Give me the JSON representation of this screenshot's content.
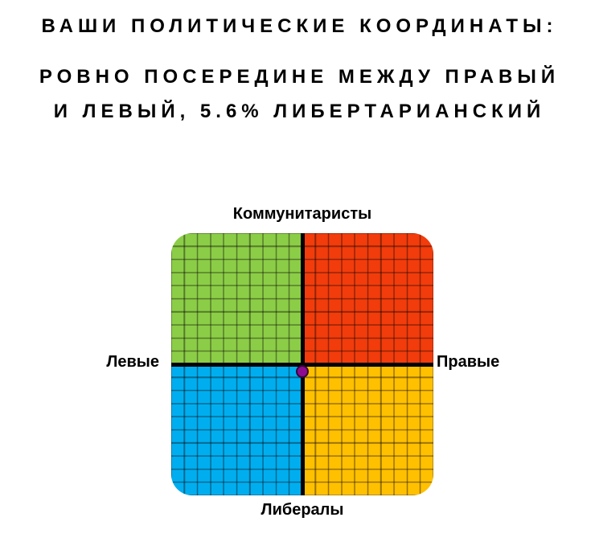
{
  "header": {
    "title": "ВАШИ ПОЛИТИЧЕСКИЕ КООРДИНАТЫ:",
    "subtitle_line1": "РОВНО ПОСЕРЕДИНЕ МЕЖДУ ПРАВЫЙ",
    "subtitle_line2": "И ЛЕВЫЙ, 5.6% ЛИБЕРТАРИАНСКИЙ"
  },
  "compass": {
    "axis_labels": {
      "top": "Коммунитаристы",
      "bottom": "Либералы",
      "left": "Левые",
      "right": "Правые"
    },
    "colors": {
      "quadrant_top_left": "#8CCD47",
      "quadrant_top_right": "#F23C0C",
      "quadrant_bottom_left": "#00AEEF",
      "quadrant_bottom_right": "#FFC000",
      "axis": "#000000",
      "grid_line": "rgba(0,0,0,0.40)",
      "marker_fill": "#8E0B90",
      "marker_border": "#330737"
    },
    "marker": {
      "x_percent": 0,
      "y_percent": -5.6
    },
    "grid": {
      "cells_per_quadrant": 10
    }
  },
  "chart_data": {
    "type": "scatter",
    "title": "ВАШИ ПОЛИТИЧЕСКИЕ КООРДИНАТЫ: РОВНО ПОСЕРЕДИНЕ МЕЖДУ ПРАВЫЙ И ЛЕВЫЙ, 5.6% ЛИБЕРТАРИАНСКИЙ",
    "x_axis": {
      "label_left": "Левые",
      "label_right": "Правые",
      "range": [
        -100,
        100
      ]
    },
    "y_axis": {
      "label_top": "Коммунитаристы",
      "label_bottom": "Либералы",
      "range": [
        -100,
        100
      ]
    },
    "points": [
      {
        "x": 0,
        "y": -5.6
      }
    ],
    "grid": true,
    "gridlines_per_quadrant": 10,
    "legend": false,
    "quadrant_colors": {
      "top_left": "#8CCD47",
      "top_right": "#F23C0C",
      "bottom_left": "#00AEEF",
      "bottom_right": "#FFC000"
    },
    "marker_color": "#8E0B90"
  }
}
